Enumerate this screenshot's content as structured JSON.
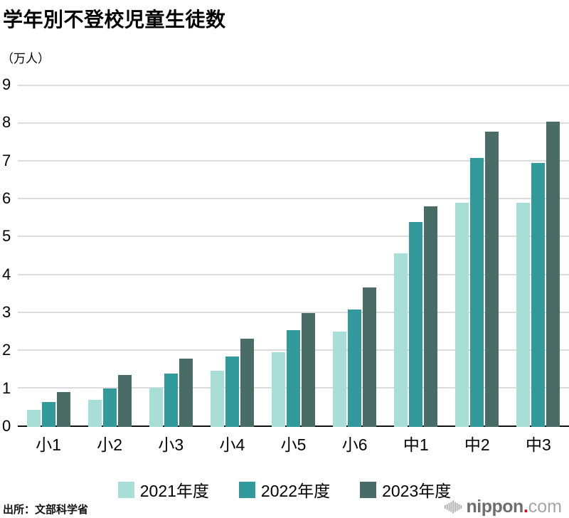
{
  "chart_data": {
    "type": "bar",
    "title": "学年別不登校児童生徒数",
    "ylabel": "（万人）",
    "categories": [
      "小1",
      "小2",
      "小3",
      "小4",
      "小5",
      "小6",
      "中1",
      "中2",
      "中3"
    ],
    "series": [
      {
        "name": "2021年度",
        "color": "#a8ded6",
        "values": [
          0.45,
          0.72,
          1.03,
          1.48,
          1.97,
          2.52,
          4.58,
          5.9,
          5.9
        ]
      },
      {
        "name": "2022年度",
        "color": "#339a9b",
        "values": [
          0.65,
          1.01,
          1.4,
          1.85,
          2.55,
          3.1,
          5.4,
          7.08,
          6.95
        ]
      },
      {
        "name": "2023年度",
        "color": "#4a6c67",
        "values": [
          0.92,
          1.37,
          1.8,
          2.32,
          3.0,
          3.67,
          5.81,
          7.78,
          8.05
        ]
      }
    ],
    "ylim": [
      0,
      9
    ],
    "yticks": [
      0,
      1,
      2,
      3,
      4,
      5,
      6,
      7,
      8,
      9
    ],
    "grid": true,
    "legend_position": "bottom"
  },
  "footer": {
    "source": "出所：文部科学省",
    "logo": {
      "name": "nippon",
      "dot": ".",
      "tld": "com",
      "dot_color": "#e60012",
      "gray": "#a9a9a9"
    }
  }
}
